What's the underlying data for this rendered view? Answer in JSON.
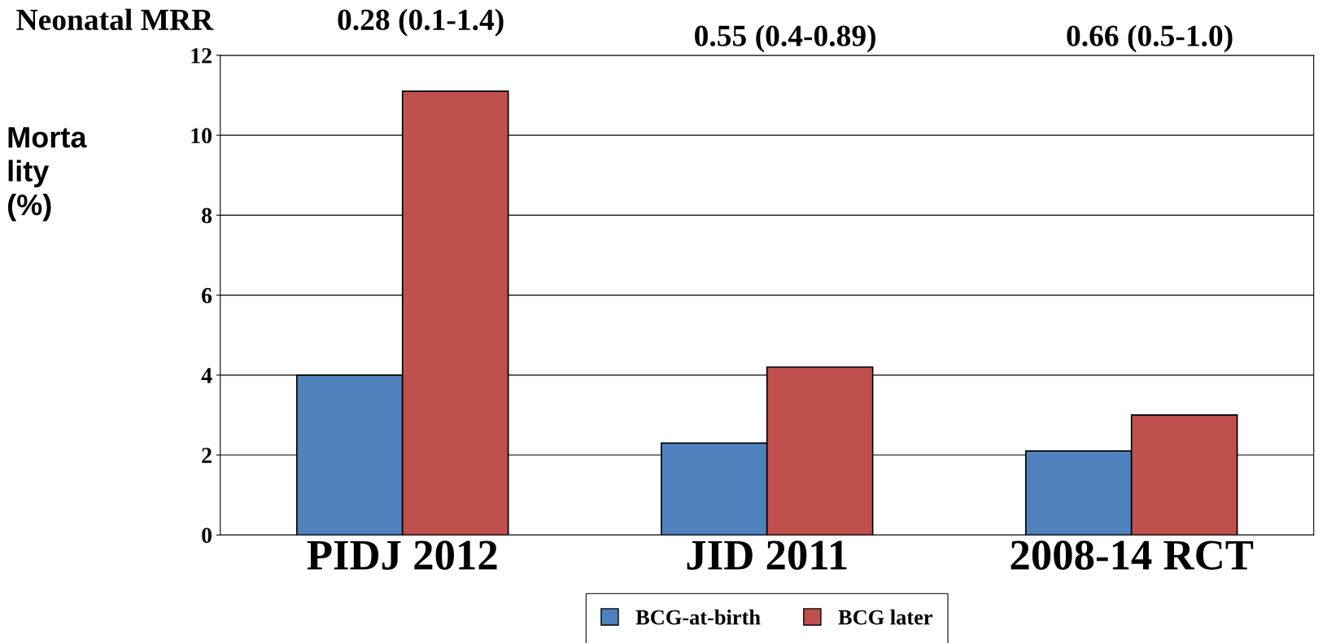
{
  "chart_data": {
    "type": "bar",
    "ylabel": "Morta\nlity\n(%)",
    "categories": [
      "PIDJ 2012",
      "JID 2011",
      "2008-14 RCT"
    ],
    "series": [
      {
        "name": "BCG-at-birth",
        "color": "#4f81bd",
        "values": [
          4,
          2.3,
          2.1
        ]
      },
      {
        "name": "BCG later",
        "color": "#c0504d",
        "values": [
          11.1,
          4.2,
          3.0
        ]
      }
    ],
    "ylim": [
      0,
      12
    ],
    "yticks": [
      0,
      2,
      4,
      6,
      8,
      10,
      12
    ],
    "grid": "y",
    "legend": "bottom",
    "annotations": [
      "Neonatal MRR",
      "0.28 (0.1-1.4)",
      "0.55 (0.4-0.89)",
      "0.66 (0.5-1.0)"
    ]
  }
}
